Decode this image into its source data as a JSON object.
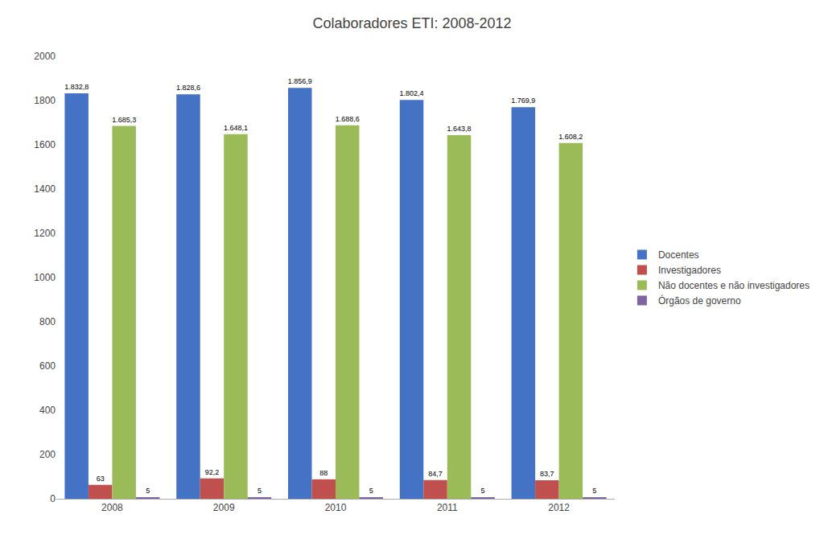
{
  "chart_data": {
    "type": "bar",
    "title": "Colaboradores ETI: 2008-2012",
    "categories": [
      "2008",
      "2009",
      "2010",
      "2011",
      "2012"
    ],
    "series": [
      {
        "name": "Docentes",
        "color": "#4472C4",
        "values": [
          1832.8,
          1828.6,
          1856.9,
          1802.4,
          1769.9
        ],
        "value_labels": [
          "1.832,8",
          "1.828,6",
          "1.856,9",
          "1.802,4",
          "1.769,9"
        ]
      },
      {
        "name": "Investigadores",
        "color": "#C0504D",
        "values": [
          63.0,
          92.2,
          88.0,
          84.7,
          83.7
        ],
        "value_labels": [
          "63",
          "92,2",
          "88",
          "84,7",
          "83,7"
        ]
      },
      {
        "name": "Não docentes e não investigadores",
        "color": "#9BBB59",
        "values": [
          1685.3,
          1648.1,
          1688.6,
          1643.8,
          1608.2
        ],
        "value_labels": [
          "1.685,3",
          "1.648,1",
          "1.688,6",
          "1.643,8",
          "1.608,2"
        ]
      },
      {
        "name": "Órgãos de governo",
        "color": "#8064A2",
        "values": [
          5,
          5,
          5,
          5,
          5
        ]
      }
    ],
    "ylim": [
      0,
      2000
    ],
    "yticks": [
      0,
      200,
      400,
      600,
      800,
      1000,
      1200,
      1400,
      1600,
      1800,
      2000
    ],
    "grid": false,
    "legend": "right",
    "data_labels": true
  }
}
